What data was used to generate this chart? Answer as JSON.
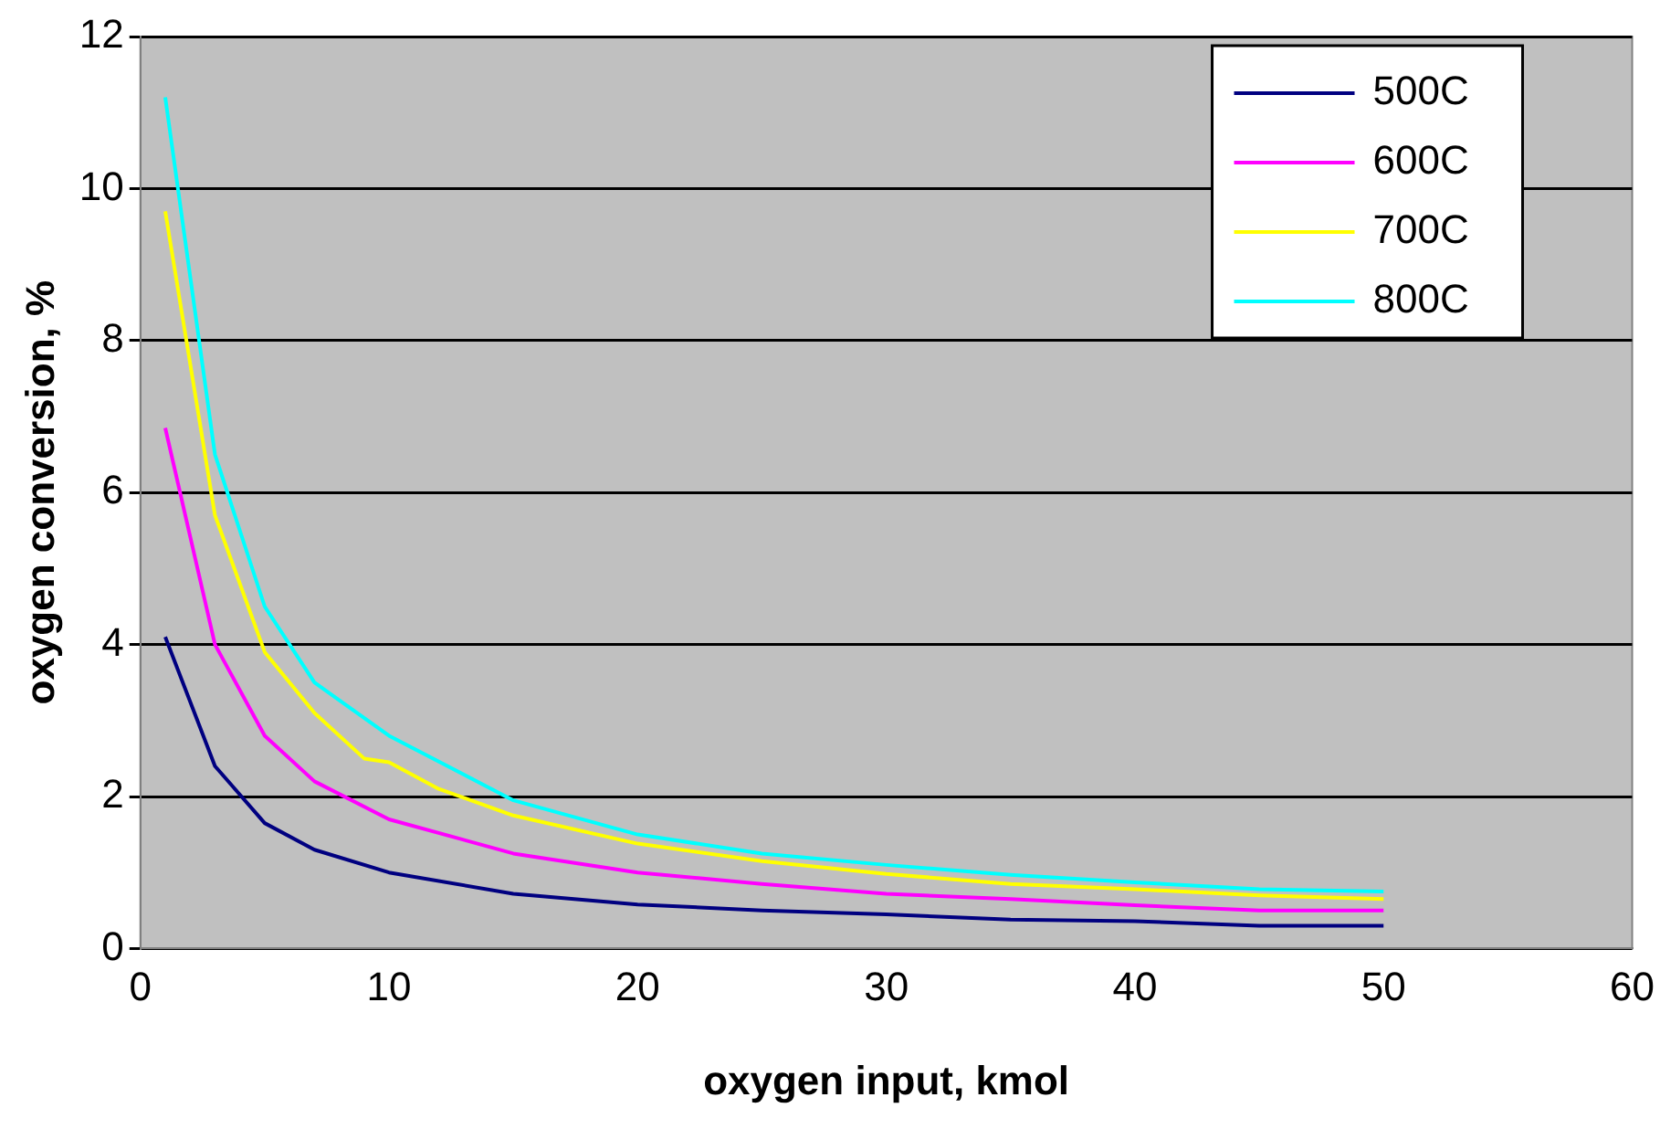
{
  "chart_data": {
    "type": "line",
    "xlabel": "oxygen input, kmol",
    "ylabel": "oxygen conversion, %",
    "xlim": [
      0,
      60
    ],
    "xticks": [
      0,
      10,
      20,
      30,
      40,
      50,
      60
    ],
    "ylim": [
      0,
      12
    ],
    "yticks": [
      0,
      2,
      4,
      6,
      8,
      10,
      12
    ],
    "grid": "y",
    "legend": "top right",
    "marker": "none",
    "line_style": "solid",
    "series": [
      {
        "name": "500C",
        "color": "#000080",
        "x": [
          1,
          3,
          5,
          7,
          10,
          15,
          20,
          25,
          30,
          35,
          40,
          45,
          50
        ],
        "values": [
          4.1,
          2.4,
          1.65,
          1.3,
          1.0,
          0.72,
          0.58,
          0.5,
          0.45,
          0.38,
          0.36,
          0.3,
          0.3
        ]
      },
      {
        "name": "600C",
        "color": "#ff00ff",
        "x": [
          1,
          3,
          5,
          7,
          10,
          15,
          20,
          25,
          30,
          35,
          40,
          45,
          50
        ],
        "values": [
          6.85,
          4.0,
          2.8,
          2.2,
          1.7,
          1.25,
          1.0,
          0.85,
          0.72,
          0.65,
          0.57,
          0.5,
          0.5
        ]
      },
      {
        "name": "700C",
        "color": "#ffff00",
        "x": [
          1,
          3,
          5,
          7,
          9,
          10,
          12,
          15,
          20,
          25,
          30,
          35,
          40,
          45,
          50
        ],
        "values": [
          9.7,
          5.7,
          3.9,
          3.1,
          2.5,
          2.45,
          2.1,
          1.75,
          1.38,
          1.15,
          0.98,
          0.85,
          0.78,
          0.7,
          0.65
        ]
      },
      {
        "name": "800C",
        "color": "#00ffff",
        "x": [
          1,
          3,
          5,
          7,
          10,
          15,
          20,
          25,
          30,
          35,
          40,
          45,
          50
        ],
        "values": [
          11.2,
          6.5,
          4.5,
          3.5,
          2.8,
          1.95,
          1.5,
          1.25,
          1.1,
          0.97,
          0.87,
          0.78,
          0.75
        ]
      }
    ]
  }
}
